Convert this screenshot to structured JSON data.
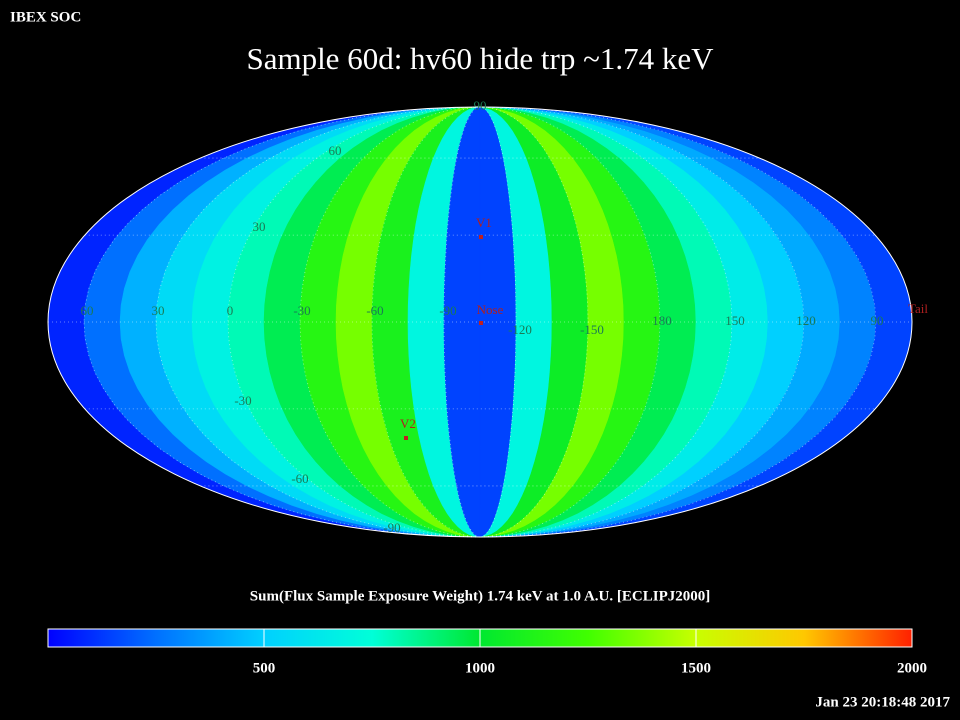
{
  "header": {
    "source": "IBEX SOC",
    "title": "Sample 60d: hv60 hide trp ~1.74 keV"
  },
  "map": {
    "latitude_labels": [
      90,
      60,
      30,
      -30,
      -60,
      -90
    ],
    "longitude_labels": [
      60,
      30,
      0,
      -30,
      -60,
      -90,
      -120,
      -150,
      180,
      150,
      120,
      90
    ],
    "markers": [
      {
        "label": "V1"
      },
      {
        "label": "Nose"
      },
      {
        "label": "V2"
      },
      {
        "label": "Tail"
      }
    ],
    "stripes": {
      "values": [
        80,
        250,
        420,
        560,
        680,
        800,
        950,
        1150,
        1350,
        1100,
        700,
        150,
        150,
        700,
        1050,
        1350,
        1150,
        950,
        800,
        650,
        500,
        400,
        300,
        150
      ]
    }
  },
  "colorbar": {
    "title": "Sum(Flux Sample Exposure Weight)  1.74 keV at 1.0 A.U. [ECLIPJ2000]",
    "clim": [
      0,
      2000
    ],
    "ticks": [
      500,
      1000,
      1500,
      2000
    ],
    "colors": [
      "#0000ff",
      "#0070ff",
      "#00d0ff",
      "#00ffd8",
      "#00e830",
      "#40ff00",
      "#c8ff00",
      "#ffc800",
      "#ff2000"
    ]
  },
  "footer": {
    "timestamp": "Jan 23 20:18:48 2017"
  }
}
